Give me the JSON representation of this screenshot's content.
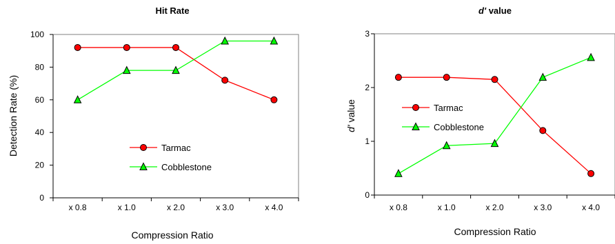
{
  "chart_data": [
    {
      "type": "line",
      "title": "Hit Rate",
      "xlabel": "Compression Ratio",
      "ylabel": "Detection Rate (%)",
      "categories": [
        "x 0.8",
        "x 1.0",
        "x 2.0",
        "x 3.0",
        "x 4.0"
      ],
      "ylim": [
        0,
        100
      ],
      "yticks": [
        0,
        20,
        40,
        60,
        80,
        100
      ],
      "grid": false,
      "legend_position": "lower-right",
      "series": [
        {
          "name": "Tarmac",
          "values": [
            92,
            92,
            92,
            72,
            60
          ],
          "color": "#ff0000",
          "marker": "circle",
          "marker_fill": "#ff0000"
        },
        {
          "name": "Cobblestone",
          "values": [
            60,
            78,
            78,
            96,
            96
          ],
          "color": "#00ff00",
          "marker": "triangle",
          "marker_fill": "#00ff00"
        }
      ]
    },
    {
      "type": "line",
      "title": "d' value",
      "title_italic_part": "d'",
      "title_rest": " value",
      "xlabel": "Compression Ratio",
      "ylabel": "d' value",
      "ylabel_italic_part": "d'",
      "ylabel_rest": " value",
      "categories": [
        "x 0.8",
        "x 1.0",
        "x 2.0",
        "x 3.0",
        "x 4.0"
      ],
      "ylim": [
        0,
        3
      ],
      "yticks": [
        0,
        1,
        2,
        3
      ],
      "grid": false,
      "legend_position": "center-left",
      "series": [
        {
          "name": "Tarmac",
          "values": [
            2.19,
            2.19,
            2.15,
            1.2,
            0.4
          ],
          "color": "#ff0000",
          "marker": "circle",
          "marker_fill": "#ff0000"
        },
        {
          "name": "Cobblestone",
          "values": [
            0.4,
            0.92,
            0.96,
            2.19,
            2.56
          ],
          "color": "#00ff00",
          "marker": "triangle",
          "marker_fill": "#00ff00"
        }
      ]
    }
  ]
}
